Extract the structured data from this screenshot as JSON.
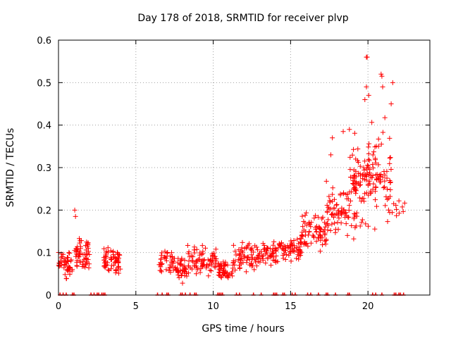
{
  "chart_data": {
    "type": "scatter",
    "title": "Day 178 of 2018, SRMTID for receiver plvp",
    "xlabel": "GPS time / hours",
    "ylabel": "SRMTID / TECUs",
    "xlim": [
      0,
      24
    ],
    "ylim": [
      0,
      0.6
    ],
    "x_ticks": [
      0,
      5,
      10,
      15,
      20
    ],
    "x_tick_labels": [
      "0",
      "5",
      "10",
      "15",
      "20"
    ],
    "y_ticks": [
      0,
      0.1,
      0.2,
      0.3,
      0.4,
      0.5,
      0.6
    ],
    "y_tick_labels": [
      "0",
      "0.1",
      "0.2",
      "0.3",
      "0.4",
      "0.5",
      "0.6"
    ],
    "grid": true,
    "marker": "plus",
    "colors": {
      "points": "#ff0000",
      "grid": "#a0a0a0",
      "axis": "#000000"
    },
    "series": [
      {
        "name": "SRMTID",
        "clusters": [
          {
            "x_range": [
              0.0,
              0.9
            ],
            "center": 0.07,
            "spread": 0.03,
            "count": 45
          },
          {
            "x_range": [
              1.0,
              2.0
            ],
            "center": 0.1,
            "spread": 0.035,
            "count": 60
          },
          {
            "x_range": [
              2.9,
              4.0
            ],
            "center": 0.08,
            "spread": 0.03,
            "count": 65
          },
          {
            "x_range": [
              6.5,
              7.5
            ],
            "center": 0.08,
            "spread": 0.03,
            "count": 40
          },
          {
            "x_range": [
              7.5,
              8.3
            ],
            "center": 0.06,
            "spread": 0.025,
            "count": 40
          },
          {
            "x_range": [
              8.3,
              10.2
            ],
            "center": 0.08,
            "spread": 0.03,
            "count": 80
          },
          {
            "x_range": [
              10.3,
              11.3
            ],
            "center": 0.06,
            "spread": 0.02,
            "count": 50
          },
          {
            "x_range": [
              11.3,
              13.0
            ],
            "center": 0.09,
            "spread": 0.03,
            "count": 70
          },
          {
            "x_range": [
              13.0,
              14.2
            ],
            "center": 0.1,
            "spread": 0.03,
            "count": 50
          },
          {
            "x_range": [
              14.2,
              15.7
            ],
            "center": 0.11,
            "spread": 0.03,
            "count": 65
          },
          {
            "x_range": [
              15.7,
              17.3
            ],
            "center": 0.15,
            "spread": 0.045,
            "count": 70
          },
          {
            "x_range": [
              17.3,
              18.8
            ],
            "center": 0.2,
            "spread": 0.06,
            "count": 70
          },
          {
            "x_range": [
              18.8,
              20.0
            ],
            "center": 0.25,
            "spread": 0.09,
            "count": 80
          },
          {
            "x_range": [
              20.0,
              21.5
            ],
            "center": 0.28,
            "spread": 0.1,
            "count": 85
          },
          {
            "x_range": [
              21.5,
              22.4
            ],
            "center": 0.2,
            "spread": 0.04,
            "count": 10
          }
        ],
        "highlights": [
          {
            "x": 1.05,
            "y": 0.2
          },
          {
            "x": 1.1,
            "y": 0.185
          },
          {
            "x": 19.9,
            "y": 0.56
          },
          {
            "x": 19.95,
            "y": 0.56
          },
          {
            "x": 20.85,
            "y": 0.52
          },
          {
            "x": 20.9,
            "y": 0.515
          },
          {
            "x": 19.9,
            "y": 0.49
          },
          {
            "x": 20.95,
            "y": 0.49
          },
          {
            "x": 21.6,
            "y": 0.5
          },
          {
            "x": 21.5,
            "y": 0.45
          },
          {
            "x": 20.05,
            "y": 0.47
          },
          {
            "x": 19.8,
            "y": 0.46
          },
          {
            "x": 18.8,
            "y": 0.39
          },
          {
            "x": 18.4,
            "y": 0.385
          },
          {
            "x": 17.7,
            "y": 0.37
          },
          {
            "x": 17.6,
            "y": 0.33
          }
        ],
        "zero_markers": [
          0.1,
          0.3,
          0.5,
          0.9,
          1.0,
          2.1,
          2.3,
          2.5,
          2.6,
          2.8,
          2.9,
          3.0,
          6.4,
          6.7,
          7.0,
          7.1,
          7.9,
          8.0,
          8.2,
          8.5,
          8.8,
          8.9,
          10.3,
          10.4,
          10.5,
          10.6,
          11.5,
          11.7,
          12.6,
          13.1,
          13.9,
          14.0,
          14.1,
          14.5,
          14.6,
          15.1,
          15.3,
          16.1,
          16.3,
          16.8,
          17.3,
          17.4,
          17.9,
          18.7,
          18.8,
          20.3,
          20.5,
          20.9,
          21.7,
          21.8,
          22.0,
          22.1,
          22.3
        ]
      }
    ]
  }
}
